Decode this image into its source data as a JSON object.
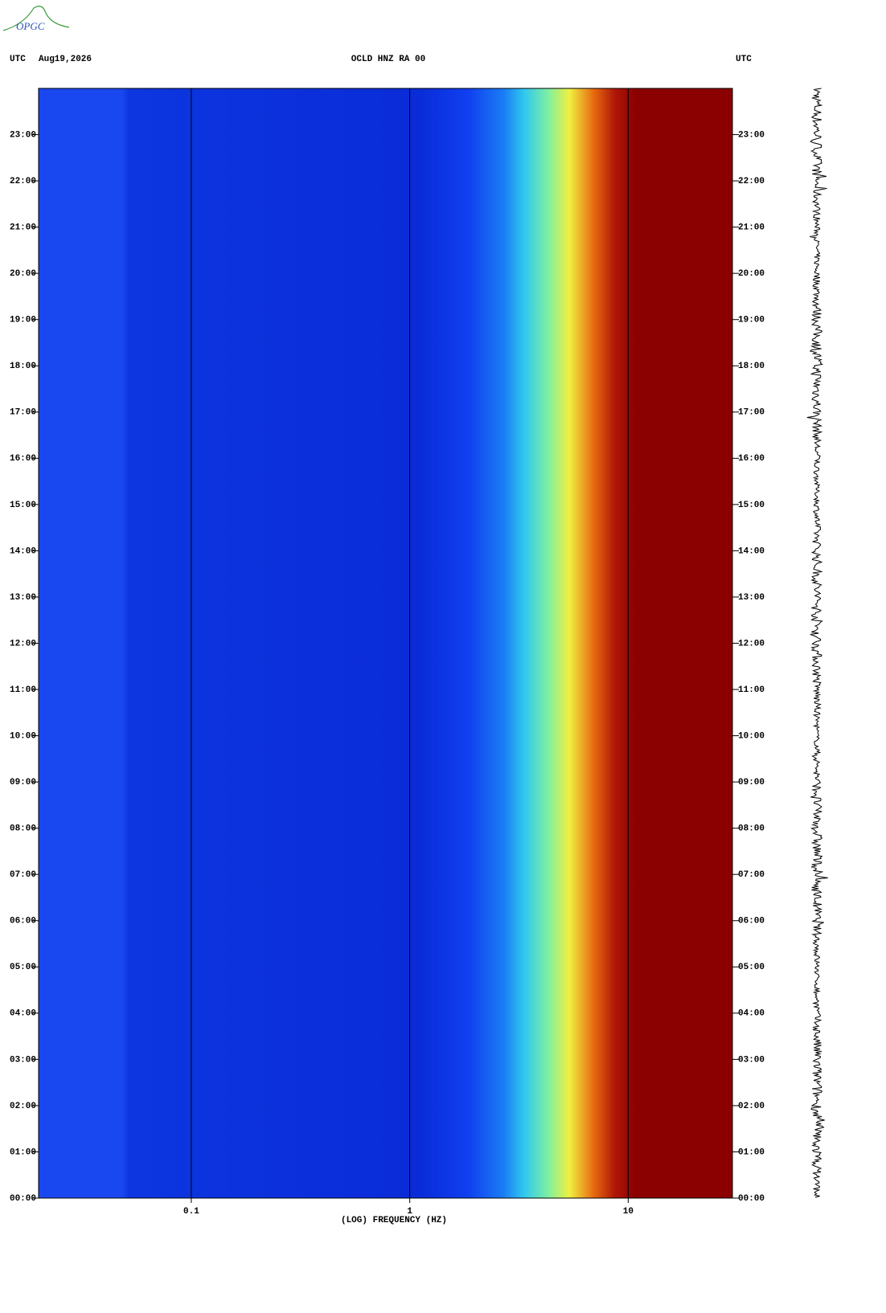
{
  "logo": "OPGC",
  "chart_data": {
    "type": "spectrogram",
    "header_left_zone": "UTC",
    "date": "Aug19,2026",
    "title": "OCLD HNZ RA 00",
    "header_right_zone": "UTC",
    "xlabel": "(LOG) FREQUENCY (HZ)",
    "xscale": "log",
    "xlim": [
      0.02,
      30
    ],
    "xticks": [
      0.1,
      1,
      10
    ],
    "ylim": [
      0,
      24
    ],
    "yticks": [
      {
        "value": 0,
        "label": "00:00"
      },
      {
        "value": 1,
        "label": "01:00"
      },
      {
        "value": 2,
        "label": "02:00"
      },
      {
        "value": 3,
        "label": "03:00"
      },
      {
        "value": 4,
        "label": "04:00"
      },
      {
        "value": 5,
        "label": "05:00"
      },
      {
        "value": 6,
        "label": "06:00"
      },
      {
        "value": 7,
        "label": "07:00"
      },
      {
        "value": 8,
        "label": "08:00"
      },
      {
        "value": 9,
        "label": "09:00"
      },
      {
        "value": 10,
        "label": "10:00"
      },
      {
        "value": 11,
        "label": "11:00"
      },
      {
        "value": 12,
        "label": "12:00"
      },
      {
        "value": 13,
        "label": "13:00"
      },
      {
        "value": 14,
        "label": "14:00"
      },
      {
        "value": 15,
        "label": "15:00"
      },
      {
        "value": 16,
        "label": "16:00"
      },
      {
        "value": 17,
        "label": "17:00"
      },
      {
        "value": 18,
        "label": "18:00"
      },
      {
        "value": 19,
        "label": "19:00"
      },
      {
        "value": 20,
        "label": "20:00"
      },
      {
        "value": 21,
        "label": "21:00"
      },
      {
        "value": 22,
        "label": "22:00"
      },
      {
        "value": 23,
        "label": "23:00"
      }
    ],
    "grid": true
  }
}
